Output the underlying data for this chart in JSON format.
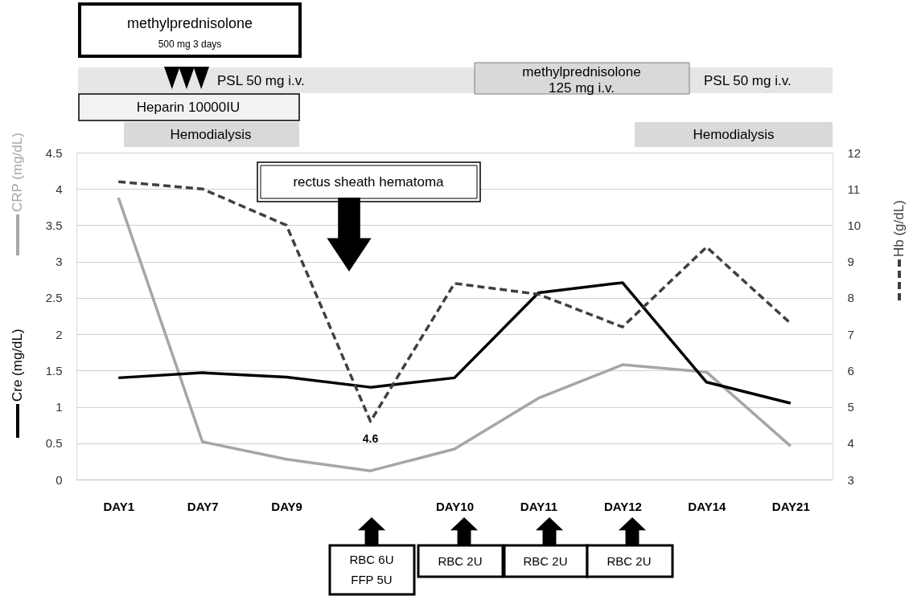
{
  "chart_data": {
    "type": "line",
    "categories": [
      "DAY1",
      "DAY7",
      "DAY9",
      null,
      "DAY10",
      "DAY11",
      "DAY12",
      "DAY14",
      "DAY21"
    ],
    "series": [
      {
        "name": "CRP (mg/dL)",
        "color": "#a6a6a6",
        "values": [
          3.88,
          0.52,
          0.28,
          0.12,
          0.42,
          1.12,
          1.58,
          1.48,
          0.46
        ]
      },
      {
        "name": "Cre (mg/dL)",
        "color": "#000000",
        "values": [
          1.4,
          1.47,
          1.41,
          1.27,
          1.4,
          2.57,
          2.71,
          1.34,
          1.05
        ]
      },
      {
        "name": "Hb (g/dL)",
        "color": "#404040",
        "axis": "y2",
        "line_style": "dashed",
        "values": [
          11.2,
          11.0,
          10.0,
          4.6,
          8.4,
          8.1,
          7.2,
          9.4,
          7.3
        ],
        "value_labels": [
          null,
          null,
          null,
          "4.6",
          null,
          null,
          null,
          null,
          null
        ]
      }
    ],
    "ylim": [
      0,
      4.5
    ],
    "yticks": [
      0,
      0.5,
      1,
      1.5,
      2,
      2.5,
      3,
      3.5,
      4,
      4.5
    ],
    "y2lim": [
      3,
      12
    ],
    "y2ticks": [
      3,
      4,
      5,
      6,
      7,
      8,
      9,
      10,
      11,
      12
    ],
    "grid": "y",
    "marker": "none",
    "line_style": "solid",
    "annotations": [
      "methylprednisolone",
      "500 mg 3 days",
      "PSL 50 mg i.v.",
      "Heparin 10000IU",
      "Hemodialysis",
      "methylprednisolone",
      "125 mg i.v.",
      "PSL 50 mg i.v.",
      "Hemodialysis",
      "rectus sheath hematoma",
      "RBC 6U",
      "FFP 5U",
      "RBC 2U",
      "RBC 2U",
      "RBC 2U"
    ]
  }
}
